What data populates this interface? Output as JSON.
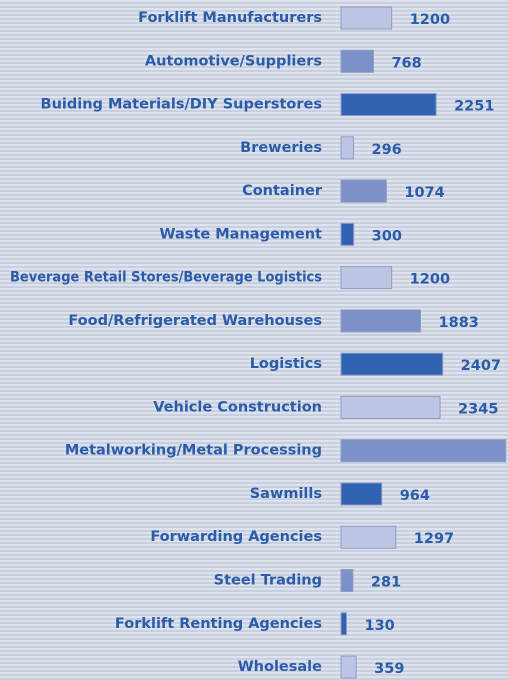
{
  "chart_data": {
    "type": "hbar",
    "categories": [
      "Forklift Manufacturers",
      "Automotive/Suppliers",
      "Buiding Materials/DIY Superstores",
      "Breweries",
      "Container",
      "Waste Management",
      "Beverage Retail Stores/Beverage Logistics",
      "Food/Refrigerated Warehouses",
      "Logistics",
      "Vehicle Construction",
      "Metalworking/Metal Processing",
      "Sawmills",
      "Forwarding Agencies",
      "Steel Trading",
      "Forklift Renting Agencies",
      "Wholesale"
    ],
    "values": [
      1200,
      768,
      2251,
      296,
      1074,
      300,
      1200,
      1883,
      2407,
      2345,
      3900,
      964,
      1297,
      281,
      130,
      359
    ],
    "value_labels": [
      "1200",
      "768",
      "2251",
      "296",
      "1074",
      "300",
      "1200",
      "1883",
      "2407",
      "2345",
      null,
      "964",
      "1297",
      "281",
      "130",
      "359"
    ],
    "colors": [
      "#bcc6e2",
      "#7d91c9",
      "#2f63b1",
      "#bcc6e2",
      "#7d91c9",
      "#2f63b1",
      "#bcc6e2",
      "#7d91c9",
      "#2f63b1",
      "#bcc6e2",
      "#7d91c9",
      "#2f63b1",
      "#bcc6e2",
      "#7d91c9",
      "#2f63b1",
      "#bcc6e2"
    ],
    "xlim": [
      0,
      3930
    ]
  }
}
